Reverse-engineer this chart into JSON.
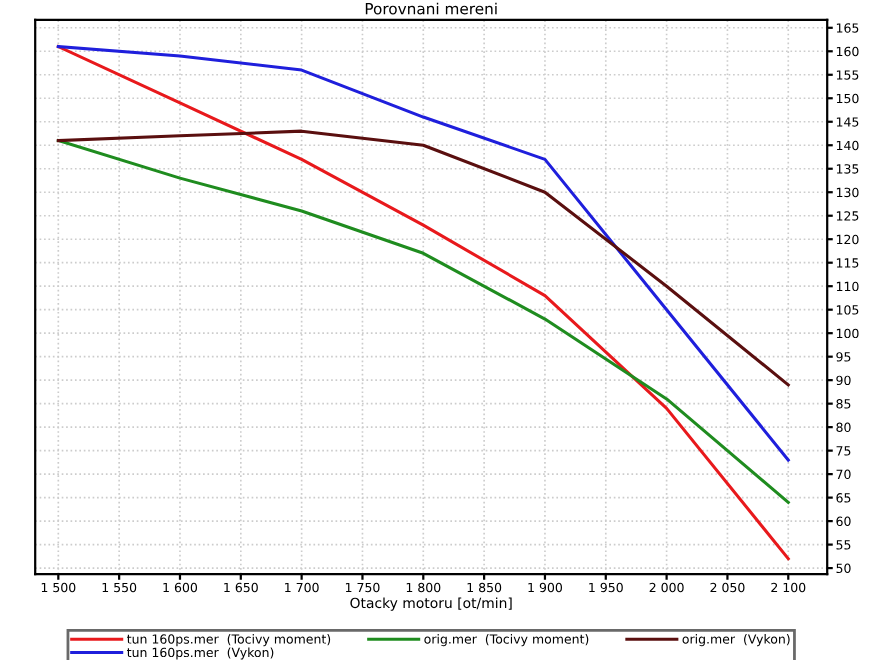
{
  "chart_data": {
    "type": "line",
    "title": "Porovnani mereni",
    "xlabel": "Otacky motoru [ot/min]",
    "x": [
      1500,
      1600,
      1700,
      1800,
      1900,
      2000,
      2100
    ],
    "series": [
      {
        "name": "tun 160ps.mer  (Tocivy moment)",
        "color": "#e8191c",
        "values": [
          161,
          149,
          137,
          123,
          108,
          84,
          52
        ]
      },
      {
        "name": "tun 160ps.mer  (Vykon)",
        "color": "#1f1fdc",
        "values": [
          161,
          159,
          156,
          146,
          137,
          105,
          73
        ]
      },
      {
        "name": "orig.mer  (Tocivy moment)",
        "color": "#1f8c1f",
        "values": [
          141,
          133,
          126,
          117,
          103,
          86,
          64
        ]
      },
      {
        "name": "orig.mer  (Vykon)",
        "color": "#5a0f0f",
        "values": [
          141,
          142,
          143,
          140,
          130,
          110,
          89
        ]
      }
    ],
    "xlim": [
      1481,
      2132
    ],
    "xticks": [
      {
        "value": 1500,
        "label": "1 500"
      },
      {
        "value": 1550,
        "label": "1 550"
      },
      {
        "value": 1600,
        "label": "1 600"
      },
      {
        "value": 1650,
        "label": "1 650"
      },
      {
        "value": 1700,
        "label": "1 700"
      },
      {
        "value": 1750,
        "label": "1 750"
      },
      {
        "value": 1800,
        "label": "1 800"
      },
      {
        "value": 1850,
        "label": "1 850"
      },
      {
        "value": 1900,
        "label": "1 900"
      },
      {
        "value": 1950,
        "label": "1 950"
      },
      {
        "value": 2000,
        "label": "2 000"
      },
      {
        "value": 2050,
        "label": "2 050"
      },
      {
        "value": 2100,
        "label": "2 100"
      }
    ],
    "ylim": [
      48.7,
      166.7
    ],
    "yticks": [
      50,
      55,
      60,
      65,
      70,
      75,
      80,
      85,
      90,
      95,
      100,
      105,
      110,
      115,
      120,
      125,
      130,
      135,
      140,
      145,
      150,
      155,
      160,
      165
    ],
    "grid": true,
    "legend": "bottom",
    "marker": "none",
    "line_style": "solid"
  }
}
